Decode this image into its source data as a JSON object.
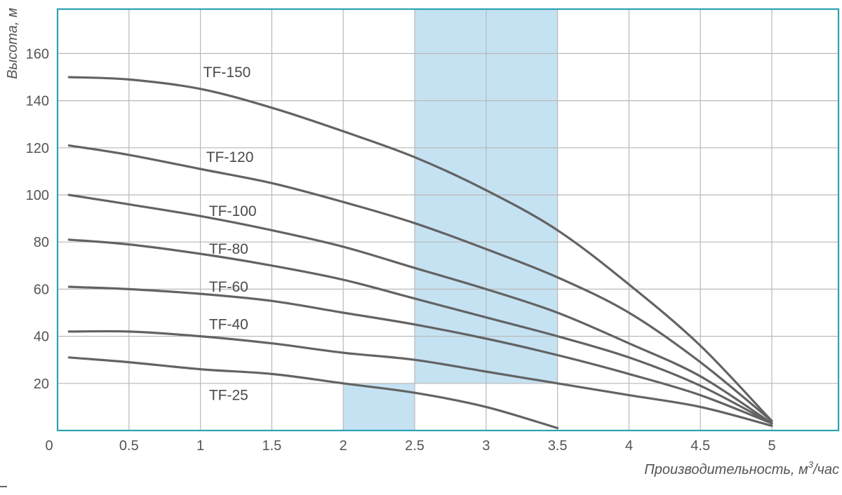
{
  "chart_data": {
    "type": "line",
    "ylabel": "Высота, м",
    "xlabel_prefix": "Производительность, м",
    "xlabel_sup": "3",
    "xlabel_suffix": "/час",
    "xlim": [
      0,
      5.45
    ],
    "ylim": [
      0,
      180
    ],
    "x_ticks": [
      "0",
      "0.5",
      "1",
      "1.5",
      "2",
      "2.5",
      "3",
      "3.5",
      "4",
      "4.5",
      "5"
    ],
    "y_ticks": [
      "20",
      "40",
      "60",
      "80",
      "100",
      "120",
      "140",
      "160"
    ],
    "grid": true,
    "highlight_regions": [
      {
        "x": [
          2.5,
          3.5
        ],
        "y": [
          20,
          180
        ]
      },
      {
        "x": [
          2.0,
          2.5
        ],
        "y": [
          0,
          20
        ]
      }
    ],
    "colors": {
      "frame": "#2aa3b3",
      "highlight": "#c5e2f2",
      "curve": "#636363",
      "grid": "#b9b9b9"
    },
    "series": [
      {
        "name": "TF-150",
        "points": [
          [
            0.08,
            150
          ],
          [
            0.5,
            149
          ],
          [
            1.0,
            145
          ],
          [
            1.5,
            137
          ],
          [
            2.0,
            127
          ],
          [
            2.5,
            116
          ],
          [
            3.0,
            102
          ],
          [
            3.5,
            85
          ],
          [
            4.0,
            62
          ],
          [
            4.5,
            36
          ],
          [
            5.0,
            4
          ]
        ]
      },
      {
        "name": "TF-120",
        "points": [
          [
            0.08,
            121
          ],
          [
            0.5,
            117
          ],
          [
            1.0,
            111
          ],
          [
            1.5,
            105
          ],
          [
            2.0,
            97
          ],
          [
            2.5,
            88
          ],
          [
            3.0,
            77
          ],
          [
            3.5,
            65
          ],
          [
            4.0,
            50
          ],
          [
            4.5,
            29
          ],
          [
            5.0,
            4
          ]
        ]
      },
      {
        "name": "TF-100",
        "points": [
          [
            0.08,
            100
          ],
          [
            0.5,
            96
          ],
          [
            1.0,
            91
          ],
          [
            1.5,
            85
          ],
          [
            2.0,
            78
          ],
          [
            2.5,
            69
          ],
          [
            3.0,
            60
          ],
          [
            3.5,
            50
          ],
          [
            4.0,
            37
          ],
          [
            4.5,
            23
          ],
          [
            5.0,
            3
          ]
        ]
      },
      {
        "name": "TF-80",
        "points": [
          [
            0.08,
            81
          ],
          [
            0.5,
            79
          ],
          [
            1.0,
            75
          ],
          [
            1.5,
            70
          ],
          [
            2.0,
            64
          ],
          [
            2.5,
            56
          ],
          [
            3.0,
            48
          ],
          [
            3.5,
            40
          ],
          [
            4.0,
            31
          ],
          [
            4.5,
            19
          ],
          [
            5.0,
            3
          ]
        ]
      },
      {
        "name": "TF-60",
        "points": [
          [
            0.08,
            61
          ],
          [
            0.5,
            60
          ],
          [
            1.0,
            58
          ],
          [
            1.5,
            55
          ],
          [
            2.0,
            50
          ],
          [
            2.5,
            45
          ],
          [
            3.0,
            39
          ],
          [
            3.5,
            32
          ],
          [
            4.0,
            24
          ],
          [
            4.5,
            15
          ],
          [
            5.0,
            3
          ]
        ]
      },
      {
        "name": "TF-40",
        "points": [
          [
            0.08,
            42
          ],
          [
            0.5,
            42
          ],
          [
            1.0,
            40
          ],
          [
            1.5,
            37
          ],
          [
            2.0,
            33
          ],
          [
            2.5,
            30
          ],
          [
            3.0,
            25
          ],
          [
            3.5,
            20
          ],
          [
            4.0,
            15
          ],
          [
            4.5,
            10
          ],
          [
            5.0,
            2
          ]
        ]
      },
      {
        "name": "TF-25",
        "points": [
          [
            0.08,
            31
          ],
          [
            0.5,
            29
          ],
          [
            1.0,
            26
          ],
          [
            1.5,
            24
          ],
          [
            2.0,
            20
          ],
          [
            2.5,
            16
          ],
          [
            3.0,
            10
          ],
          [
            3.5,
            1
          ]
        ]
      }
    ]
  }
}
